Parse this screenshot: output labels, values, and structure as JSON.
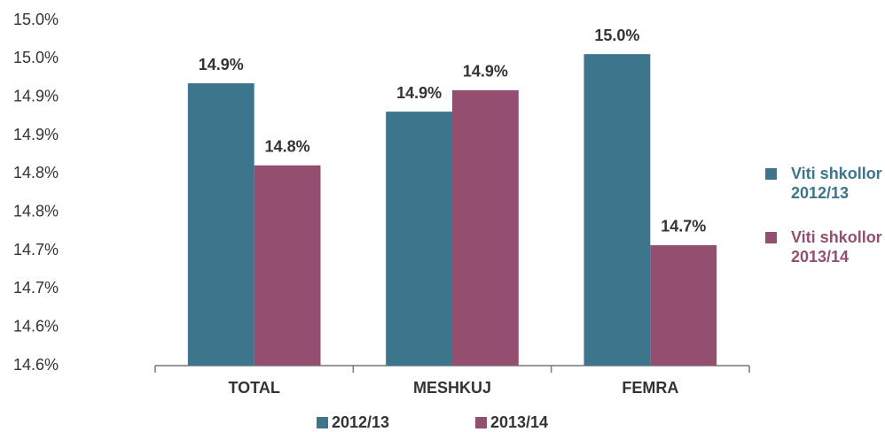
{
  "chart_data": {
    "type": "bar",
    "categories": [
      "TOTAL",
      "MESHKUJ",
      "FEMRA"
    ],
    "series": [
      {
        "name": "2012/13",
        "color": "#3d758c",
        "values": [
          14.918,
          14.881,
          14.956
        ],
        "value_labels": [
          "14.9%",
          "14.9%",
          "15.0%"
        ]
      },
      {
        "name": "2013/14",
        "color": "#934f70",
        "values": [
          14.811,
          14.909,
          14.707
        ],
        "value_labels": [
          "14.8%",
          "14.9%",
          "14.7%"
        ]
      }
    ],
    "legend_right": [
      "Viti shkollor 2012/13",
      "Viti shkollor 2013/14"
    ],
    "ylim": [
      14.55,
      15.0
    ],
    "yticks": [
      {
        "value": 14.55,
        "label": "14.6%"
      },
      {
        "value": 14.6,
        "label": "14.6%"
      },
      {
        "value": 14.65,
        "label": "14.7%"
      },
      {
        "value": 14.7,
        "label": "14.7%"
      },
      {
        "value": 14.75,
        "label": "14.8%"
      },
      {
        "value": 14.8,
        "label": "14.8%"
      },
      {
        "value": 14.85,
        "label": "14.9%"
      },
      {
        "value": 14.9,
        "label": "14.9%"
      },
      {
        "value": 14.95,
        "label": "15.0%"
      },
      {
        "value": 15.0,
        "label": "15.0%"
      }
    ],
    "grid": false,
    "legend": "bottom"
  }
}
